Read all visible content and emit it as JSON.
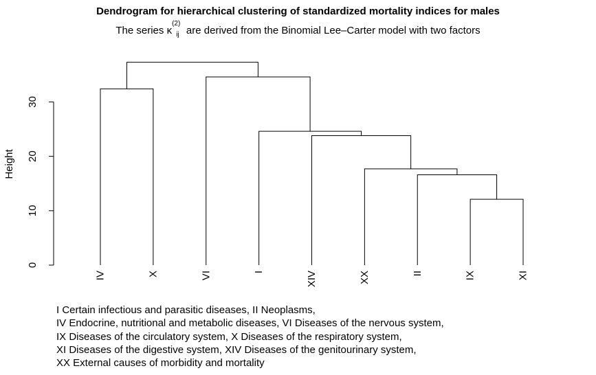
{
  "title": "Dendrogram for hierarchical clustering of standardized mortality indices for males",
  "subtitle": {
    "prefix": "The series ",
    "symbol": "κ",
    "superscript": "(2)",
    "subscript": "ij",
    "suffix": " are derived from the Binomial Lee–Carter model with two factors"
  },
  "chart_data": {
    "type": "dendrogram",
    "ylabel": "Height",
    "ylim": [
      0,
      37
    ],
    "yticks": [
      0,
      10,
      20,
      30
    ],
    "leaves": [
      "IV",
      "X",
      "VI",
      "I",
      "XIV",
      "XX",
      "II",
      "IX",
      "XI"
    ],
    "merges": [
      {
        "left": "IX",
        "right": "XI",
        "height": 12.1
      },
      {
        "left": "II",
        "right": "IX+XI",
        "height": 16.6
      },
      {
        "left": "XX",
        "right": "II+IX+XI",
        "height": 17.7
      },
      {
        "left": "XIV",
        "right": "XX+II+IX+XI",
        "height": 23.8
      },
      {
        "left": "I",
        "right": "XIV+XX+II+IX+XI",
        "height": 24.6
      },
      {
        "left": "IV",
        "right": "X",
        "height": 32.4
      },
      {
        "left": "VI",
        "right": "I+XIV+XX+II+IX+XI",
        "height": 34.6
      },
      {
        "left": "IV+X",
        "right": "VI+I+XIV+XX+II+IX+XI",
        "height": 37.3
      }
    ]
  },
  "legend_lines": [
    "I Certain infectious and parasitic diseases, II Neoplasms,",
    "IV Endocrine, nutritional and metabolic diseases, VI Diseases of the nervous system,",
    "IX Diseases of the circulatory system, X Diseases of the respiratory system,",
    "XI Diseases of the digestive system, XIV Diseases of the genitourinary system,",
    "XX External causes of morbidity and mortality"
  ]
}
